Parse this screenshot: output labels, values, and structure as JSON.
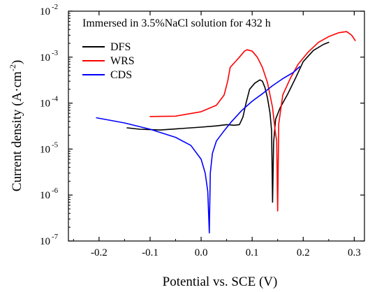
{
  "chart_data": {
    "type": "line",
    "xlabel": "Potential vs. SCE  (V)",
    "ylabel_parts": [
      "Current density (A·cm",
      "-2",
      ")"
    ],
    "annotation": "Immersed in 3.5%NaCl solution for 432 h",
    "xlim": [
      -0.26,
      0.32
    ],
    "ylim_log10": [
      -7,
      -2
    ],
    "y_scale": "log",
    "x_ticks": [
      -0.2,
      -0.1,
      0.0,
      0.1,
      0.2,
      0.3
    ],
    "x_tick_labels": [
      "-0.2",
      "-0.1",
      "0.0",
      "0.1",
      "0.2",
      "0.3"
    ],
    "y_tick_exponents": [
      "-7",
      "-6",
      "-5",
      "-4",
      "-3",
      "-2"
    ],
    "y_tick_base": "10",
    "legend_position": "top-left",
    "series": [
      {
        "name": "DFS",
        "color": "#000000",
        "points": [
          [
            -0.145,
            2.9e-05
          ],
          [
            -0.12,
            2.7e-05
          ],
          [
            -0.08,
            2.6e-05
          ],
          [
            -0.04,
            2.8e-05
          ],
          [
            0.0,
            3e-05
          ],
          [
            0.03,
            3.2e-05
          ],
          [
            0.05,
            3.4e-05
          ],
          [
            0.065,
            3.3e-05
          ],
          [
            0.075,
            3.4e-05
          ],
          [
            0.082,
            5e-05
          ],
          [
            0.088,
            0.0001
          ],
          [
            0.095,
            0.0002
          ],
          [
            0.105,
            0.00027
          ],
          [
            0.115,
            0.00032
          ],
          [
            0.12,
            0.0003
          ],
          [
            0.125,
            0.00022
          ],
          [
            0.13,
            0.00013
          ],
          [
            0.135,
            6e-05
          ],
          [
            0.138,
            2.5e-05
          ],
          [
            0.14,
            7e-07
          ],
          [
            0.142,
            1.4e-05
          ],
          [
            0.146,
            4.5e-05
          ],
          [
            0.155,
            8e-05
          ],
          [
            0.17,
            0.00016
          ],
          [
            0.185,
            0.00035
          ],
          [
            0.2,
            0.0008
          ],
          [
            0.22,
            0.0014
          ],
          [
            0.24,
            0.0019
          ],
          [
            0.25,
            0.0021
          ]
        ]
      },
      {
        "name": "WRS",
        "color": "#ff0000",
        "points": [
          [
            -0.1,
            5.1e-05
          ],
          [
            -0.05,
            5.2e-05
          ],
          [
            0.0,
            6.5e-05
          ],
          [
            0.03,
            9e-05
          ],
          [
            0.045,
            0.00015
          ],
          [
            0.052,
            0.0003
          ],
          [
            0.057,
            0.0006
          ],
          [
            0.065,
            0.00075
          ],
          [
            0.075,
            0.001
          ],
          [
            0.085,
            0.00135
          ],
          [
            0.09,
            0.00145
          ],
          [
            0.1,
            0.00135
          ],
          [
            0.11,
            0.001
          ],
          [
            0.12,
            0.0006
          ],
          [
            0.13,
            0.00028
          ],
          [
            0.14,
            8e-05
          ],
          [
            0.145,
            2.5e-05
          ],
          [
            0.148,
            1.5e-05
          ],
          [
            0.15,
            4.5e-07
          ],
          [
            0.152,
            3.5e-05
          ],
          [
            0.16,
            0.00015
          ],
          [
            0.175,
            0.00035
          ],
          [
            0.19,
            0.0007
          ],
          [
            0.21,
            0.0013
          ],
          [
            0.23,
            0.0021
          ],
          [
            0.25,
            0.0028
          ],
          [
            0.27,
            0.0034
          ],
          [
            0.285,
            0.0036
          ],
          [
            0.295,
            0.003
          ],
          [
            0.302,
            0.0023
          ]
        ]
      },
      {
        "name": "CDS",
        "color": "#0000ff",
        "points": [
          [
            -0.205,
            4.8e-05
          ],
          [
            -0.15,
            3.7e-05
          ],
          [
            -0.1,
            2.7e-05
          ],
          [
            -0.05,
            1.8e-05
          ],
          [
            -0.02,
            1.2e-05
          ],
          [
            0.0,
            6e-06
          ],
          [
            0.008,
            3e-06
          ],
          [
            0.013,
            1.2e-06
          ],
          [
            0.016,
            1.5e-07
          ],
          [
            0.018,
            3e-06
          ],
          [
            0.022,
            8e-06
          ],
          [
            0.03,
            1.5e-05
          ],
          [
            0.045,
            2.5e-05
          ],
          [
            0.06,
            4e-05
          ],
          [
            0.08,
            7e-05
          ],
          [
            0.1,
            0.00011
          ],
          [
            0.12,
            0.00016
          ],
          [
            0.14,
            0.00024
          ],
          [
            0.16,
            0.00034
          ],
          [
            0.18,
            0.00046
          ],
          [
            0.193,
            0.00062
          ]
        ]
      }
    ]
  }
}
